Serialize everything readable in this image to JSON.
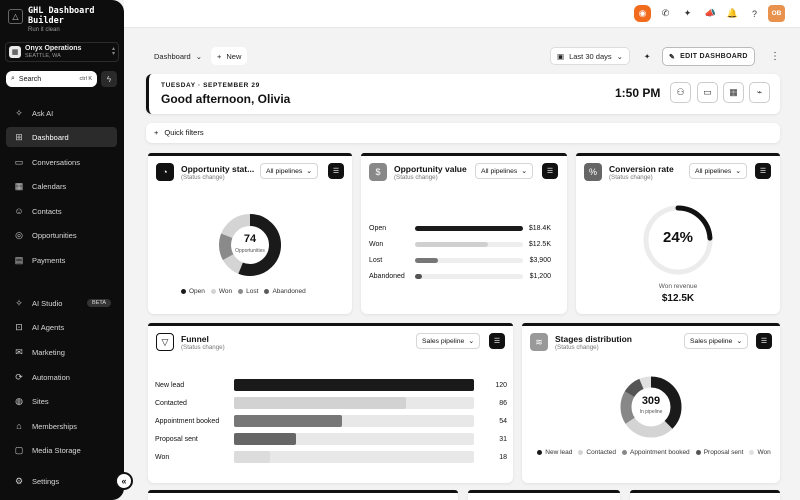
{
  "sidebar": {
    "brand_title": "GHL Dashboard Builder",
    "brand_subtitle": "Run it clean",
    "account_name": "Onyx Operations",
    "account_location": "SEATTLE, WA",
    "search_placeholder": "Search",
    "search_shortcut": "ctrl K",
    "nav": [
      {
        "label": "Ask AI",
        "icon": "sparkle-icon"
      },
      {
        "label": "Dashboard",
        "icon": "grid-icon",
        "active": true
      },
      {
        "label": "Conversations",
        "icon": "chat-icon"
      },
      {
        "label": "Calendars",
        "icon": "calendar-icon"
      },
      {
        "label": "Contacts",
        "icon": "user-icon"
      },
      {
        "label": "Opportunities",
        "icon": "target-icon"
      },
      {
        "label": "Payments",
        "icon": "card-icon"
      },
      {
        "label": "AI Studio",
        "icon": "sparkle-icon",
        "badge": "BETA"
      },
      {
        "label": "AI Agents",
        "icon": "robot-icon"
      },
      {
        "label": "Marketing",
        "icon": "mail-icon"
      },
      {
        "label": "Automation",
        "icon": "automation-icon"
      },
      {
        "label": "Sites",
        "icon": "globe-icon"
      },
      {
        "label": "Memberships",
        "icon": "graduation-icon"
      },
      {
        "label": "Media Storage",
        "icon": "folder-icon"
      },
      {
        "label": "Settings",
        "icon": "gear-icon"
      }
    ]
  },
  "topbar": {
    "avatar_initials": "OB"
  },
  "toolbar": {
    "dashboard_label": "Dashboard",
    "new_label": "New",
    "date_range": "Last 30 days",
    "edit_label": "EDIT DASHBOARD"
  },
  "greeting": {
    "date": "TUESDAY · SEPTEMBER 29",
    "text": "Good afternoon, Olivia",
    "time": "1:50 PM"
  },
  "quick_filters": "Quick filters",
  "widgets": {
    "opp_status": {
      "title": "Opportunity stat...",
      "subtitle": "(Status change)",
      "select": "All pipelines",
      "center_value": "74",
      "center_label": "Opportunities",
      "legend": [
        {
          "label": "Open",
          "color": "#1a1a1a"
        },
        {
          "label": "Won",
          "color": "#d4d4d4"
        },
        {
          "label": "Lost",
          "color": "#8a8a8a"
        },
        {
          "label": "Abandoned",
          "color": "#5a5a5a"
        }
      ]
    },
    "opp_value": {
      "title": "Opportunity value",
      "subtitle": "(Status change)",
      "select": "All pipelines",
      "rows": [
        {
          "label": "Open",
          "value": "$18.4K",
          "amount": 18400,
          "color": "#1a1a1a"
        },
        {
          "label": "Won",
          "value": "$12.5K",
          "amount": 12500,
          "color": "#d0d0d0"
        },
        {
          "label": "Lost",
          "value": "$3,900",
          "amount": 3900,
          "color": "#777777"
        },
        {
          "label": "Abandoned",
          "value": "$1,200",
          "amount": 1200,
          "color": "#555555"
        }
      ],
      "max": 18400
    },
    "conversion": {
      "title": "Conversion rate",
      "subtitle": "(Status change)",
      "select": "All pipelines",
      "value_text": "24%",
      "percent": 24,
      "caption": "Won revenue",
      "revenue": "$12.5K"
    },
    "funnel": {
      "title": "Funnel",
      "subtitle": "(Status change)",
      "select": "Sales pipeline",
      "rows": [
        {
          "label": "New lead",
          "value": "120",
          "count": 120,
          "color": "#1a1a1a"
        },
        {
          "label": "Contacted",
          "value": "86",
          "count": 86,
          "color": "#d2d2d2"
        },
        {
          "label": "Appointment booked",
          "value": "54",
          "count": 54,
          "color": "#777777"
        },
        {
          "label": "Proposal sent",
          "value": "31",
          "count": 31,
          "color": "#666666"
        },
        {
          "label": "Won",
          "value": "18",
          "count": 18,
          "color": "#dcdcdc"
        }
      ],
      "max": 120
    },
    "stages": {
      "title": "Stages distribution",
      "subtitle": "(Status change)",
      "select": "Sales pipeline",
      "center_value": "309",
      "center_label": "In pipeline",
      "legend": [
        {
          "label": "New lead",
          "color": "#1a1a1a"
        },
        {
          "label": "Contacted",
          "color": "#d4d4d4"
        },
        {
          "label": "Appointment booked",
          "color": "#888888"
        },
        {
          "label": "Proposal sent",
          "color": "#555555"
        },
        {
          "label": "Won",
          "color": "#e0e0e0"
        }
      ]
    }
  },
  "colors": {
    "accent": "#f26b1d",
    "sidebar_bg": "#0d0d0d",
    "ink": "#111111"
  }
}
